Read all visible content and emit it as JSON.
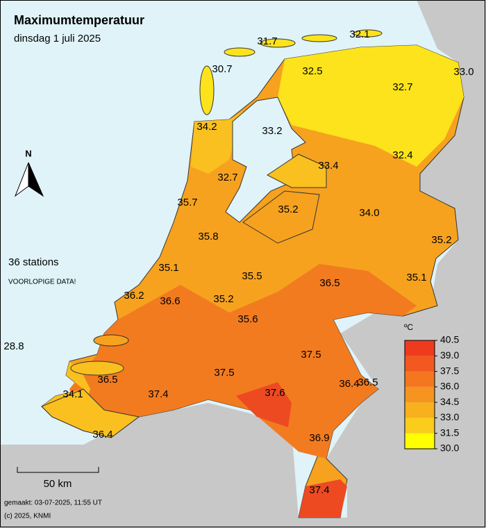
{
  "header": {
    "title": "Maximumtemperatuur",
    "subtitle": "dinsdag 1 juli 2025"
  },
  "north_label": "N",
  "station_count": "36 stations",
  "notice": "VOORLOPIGE DATA!",
  "scale_bar": "50 km",
  "footer": {
    "made": "gemaakt: 03-07-2025, 11:55 UT",
    "copyright": "(c) 2025, KNMI"
  },
  "legend": {
    "unit": "ºC",
    "ticks": [
      "40.5",
      "39.0",
      "37.5",
      "36.0",
      "34.5",
      "33.0",
      "31.5",
      "30.0"
    ]
  },
  "stations": [
    "31.7",
    "32.1",
    "30.7",
    "32.5",
    "33.0",
    "32.7",
    "34.2",
    "33.2",
    "32.4",
    "33.4",
    "32.7",
    "35.7",
    "35.2",
    "34.0",
    "35.8",
    "35.2",
    "35.1",
    "35.5",
    "35.1",
    "36.5",
    "36.2",
    "36.6",
    "35.2",
    "35.6",
    "28.8",
    "37.5",
    "37.5",
    "36.5",
    "36.4",
    "36.5",
    "34.1",
    "37.4",
    "37.6",
    "36.4",
    "36.9",
    "37.4"
  ]
}
